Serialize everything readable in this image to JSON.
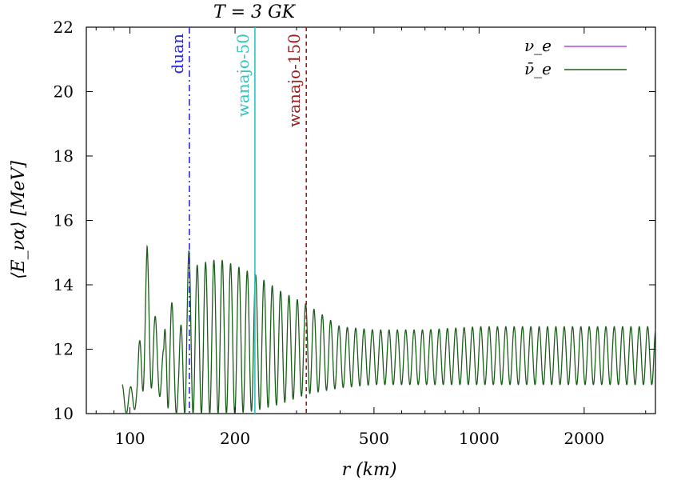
{
  "chart_data": {
    "type": "line",
    "title": "T = 3 GK",
    "xlabel": "r (km)",
    "ylabel": "⟨E_να⟩ [MeV]",
    "x_scale": "log",
    "xlim": [
      75,
      3200
    ],
    "ylim": [
      10,
      22
    ],
    "x_ticks": [
      100,
      200,
      500,
      1000,
      2000
    ],
    "y_ticks": [
      10,
      12,
      14,
      16,
      18,
      20,
      22
    ],
    "grid": false,
    "legend_position": "top-right",
    "series": [
      {
        "name": "ν_e",
        "color": "#b44cdc",
        "values": []
      },
      {
        "name": "ν̄_e",
        "color": "#1b5e1b",
        "x": [
          95,
          100,
          105,
          108,
          112,
          115,
          120,
          125,
          128,
          133,
          138,
          145,
          148,
          155,
          165,
          180,
          200,
          230,
          270,
          320,
          400,
          500,
          700,
          1000,
          1500,
          2000,
          3200
        ],
        "y_max": [
          10.9,
          10.8,
          11.2,
          13.5,
          15.2,
          14.0,
          12.5,
          12.0,
          15.2,
          13.0,
          12.0,
          14.8,
          15.1,
          14.6,
          14.7,
          14.8,
          14.6,
          14.3,
          13.8,
          13.4,
          12.7,
          12.6,
          12.6,
          12.7,
          12.7,
          12.7,
          12.7
        ],
        "y_min": [
          10.0,
          10.0,
          10.2,
          10.6,
          11.0,
          10.8,
          10.6,
          10.4,
          10.2,
          10.0,
          10.0,
          10.0,
          10.0,
          10.0,
          10.0,
          10.0,
          10.0,
          10.1,
          10.3,
          10.6,
          10.8,
          10.9,
          10.9,
          10.9,
          10.9,
          10.9,
          10.9
        ]
      }
    ],
    "vertical_lines": [
      {
        "label": "duan",
        "x": 148,
        "color": "#2a2ad8",
        "style": "dashdot"
      },
      {
        "label": "wanajo-50",
        "x": 228,
        "color": "#2ec4c0",
        "style": "solid"
      },
      {
        "label": "wanajo-150",
        "x": 320,
        "color": "#9c1c1c",
        "style": "dashed"
      }
    ]
  }
}
